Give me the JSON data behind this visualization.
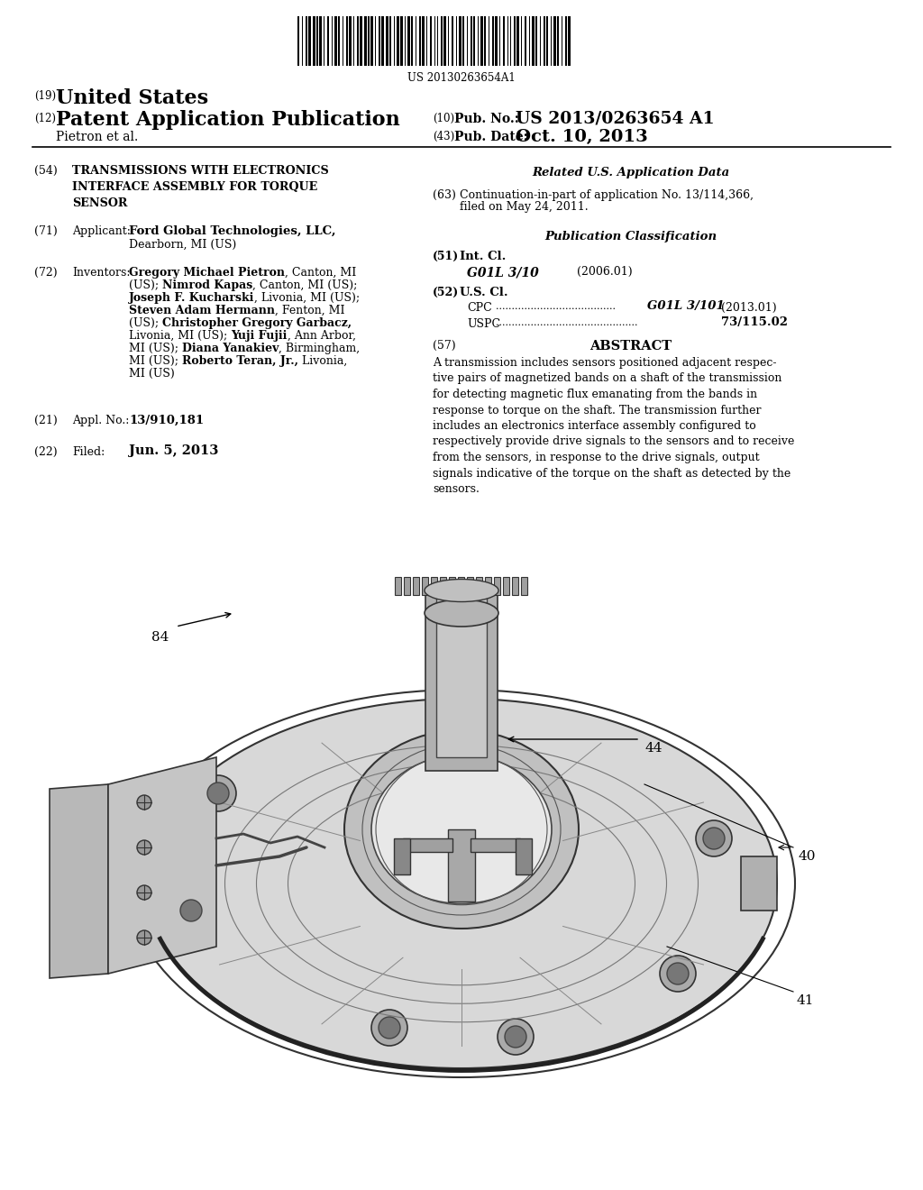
{
  "barcode_text": "US 20130263654A1",
  "title_19": "(19) United States",
  "title_12": "(12) Patent Application Publication",
  "pub_no_label": "(10) Pub. No.:",
  "pub_no_value": "US 2013/0263654 A1",
  "inventor": "Pietron et al.",
  "pub_date_label": "(43) Pub. Date:",
  "pub_date_value": "Oct. 10, 2013",
  "field_54_label": "(54)",
  "field_54_title": "TRANSMISSIONS WITH ELECTRONICS\nINTERFACE ASSEMBLY FOR TORQUE\nSENSOR",
  "field_71_label": "(71)",
  "field_71_title": "Applicant:",
  "field_71_value": "Ford Global Technologies, LLC,\nDearborn, MI (US)",
  "field_72_label": "(72)",
  "field_72_title": "Inventors:",
  "field_72_value": "Gregory Michael Pietron, Canton, MI\n(US); Nimrod Kapas, Canton, MI (US);\nJoseph F. Kucharski, Livonia, MI (US);\nSteven Adam Hermann, Fenton, MI\n(US); Christopher Gregory Garbacz,\nLivonia, MI (US); Yuji Fujii, Ann Arbor,\nMI (US); Diana Yanakiev, Birmingham,\nMI (US); Roberto Teran, Jr., Livonia,\nMI (US)",
  "field_21_label": "(21)",
  "field_21_title": "Appl. No.:",
  "field_21_value": "13/910,181",
  "field_22_label": "(22)",
  "field_22_title": "Filed:",
  "field_22_value": "Jun. 5, 2013",
  "related_title": "Related U.S. Application Data",
  "field_63_label": "(63)",
  "field_63_value": "Continuation-in-part of application No. 13/114,366,\nfiled on May 24, 2011.",
  "pub_class_title": "Publication Classification",
  "field_51_label": "(51)",
  "field_51_title": "Int. Cl.",
  "field_51_class": "G01L 3/10",
  "field_51_year": "(2006.01)",
  "field_52_label": "(52)",
  "field_52_title": "U.S. Cl.",
  "field_52_cpc_label": "CPC",
  "field_52_cpc_dots": "......................................",
  "field_52_cpc_value": "G01L 3/101",
  "field_52_cpc_year": "(2013.01)",
  "field_52_uspc_label": "USPC",
  "field_52_uspc_dots": ".............................................",
  "field_52_uspc_value": "73/115.02",
  "field_57_label": "(57)",
  "field_57_title": "ABSTRACT",
  "abstract_text": "A transmission includes sensors positioned adjacent respective pairs of magnetized bands on a shaft of the transmission for detecting magnetic flux emanating from the bands in response to torque on the shaft. The transmission further includes an electronics interface assembly configured to respectively provide drive signals to the sensors and to receive from the sensors, in response to the drive signals, output signals indicative of the torque on the shaft as detected by the sensors.",
  "label_40": "40",
  "label_41": "41",
  "label_44": "44",
  "label_84": "84",
  "bg_color": "#ffffff",
  "text_color": "#000000"
}
